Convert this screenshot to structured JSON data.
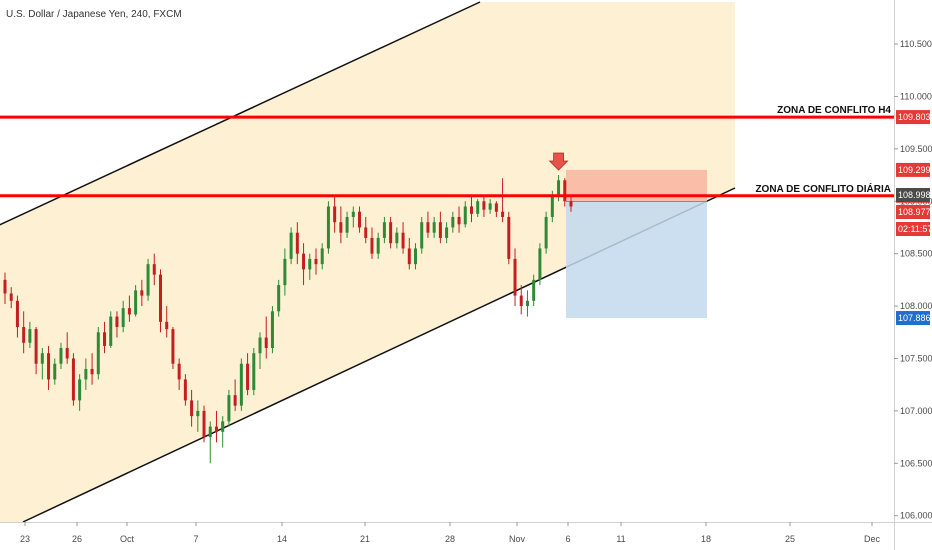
{
  "header": {
    "title": "U.S. Dollar / Japanese Yen, 240, FXCM"
  },
  "colors": {
    "channel_fill": "#fdf0d3",
    "zone_line": "#ff0000",
    "bull": "#2e8a36",
    "bear": "#c41e1e",
    "stop_zone": "#f8b4a0",
    "target_zone": "#c2d9ef",
    "badge_red": "#e53935",
    "badge_blue": "#1e6fd0",
    "badge_dark": "#4a4a4a",
    "axis_border": "#d0d0d0"
  },
  "chart_data": {
    "type": "candlestick",
    "symbol": "U.S. Dollar / Japanese Yen",
    "interval": "240",
    "source": "FXCM",
    "x_ticks": [
      "23",
      "26",
      "Oct",
      "7",
      "14",
      "21",
      "28",
      "Nov",
      "6",
      "11",
      "18",
      "25",
      "Dec"
    ],
    "y_ticks": [
      "106.000",
      "106.500",
      "107.000",
      "107.500",
      "108.000",
      "108.500",
      "109.000",
      "109.500",
      "110.000",
      "110.500"
    ],
    "ylim": [
      105.94,
      110.92
    ],
    "horizontal_levels": [
      {
        "label": "ZONA DE CONFLITO H4",
        "price": 109.803
      },
      {
        "label": "ZONA DE CONFLITO DIÁRIA",
        "price": 109.052
      }
    ],
    "price_badges": [
      {
        "text": "109.803",
        "color": "red"
      },
      {
        "text": "109.299",
        "color": "red"
      },
      {
        "text": "109.052",
        "color": "red"
      },
      {
        "text": "108.998",
        "color": "dark"
      },
      {
        "text": "108.977",
        "color": "red"
      },
      {
        "text": "02:11:57",
        "color": "red"
      },
      {
        "text": "107.886",
        "color": "blue"
      }
    ],
    "trade_setup": {
      "direction": "short",
      "stop": 109.299,
      "entry": 108.998,
      "target": 107.886
    },
    "candles": [
      [
        108.25,
        108.32,
        108.02,
        108.12
      ],
      [
        108.12,
        108.18,
        107.98,
        108.05
      ],
      [
        108.05,
        108.1,
        107.7,
        107.8
      ],
      [
        107.8,
        107.95,
        107.55,
        107.65
      ],
      [
        107.65,
        107.85,
        107.6,
        107.78
      ],
      [
        107.78,
        107.8,
        107.35,
        107.45
      ],
      [
        107.45,
        107.6,
        107.3,
        107.55
      ],
      [
        107.55,
        107.62,
        107.2,
        107.3
      ],
      [
        107.3,
        107.5,
        107.25,
        107.45
      ],
      [
        107.45,
        107.65,
        107.4,
        107.6
      ],
      [
        107.6,
        107.75,
        107.45,
        107.5
      ],
      [
        107.5,
        107.55,
        107.05,
        107.1
      ],
      [
        107.1,
        107.35,
        107.0,
        107.3
      ],
      [
        107.3,
        107.5,
        107.2,
        107.4
      ],
      [
        107.4,
        107.55,
        107.25,
        107.35
      ],
      [
        107.35,
        107.8,
        107.3,
        107.75
      ],
      [
        107.75,
        107.85,
        107.55,
        107.62
      ],
      [
        107.62,
        107.95,
        107.6,
        107.9
      ],
      [
        107.9,
        107.95,
        107.7,
        107.8
      ],
      [
        107.8,
        108.05,
        107.75,
        107.98
      ],
      [
        107.98,
        108.1,
        107.85,
        107.92
      ],
      [
        107.92,
        108.2,
        107.9,
        108.15
      ],
      [
        108.15,
        108.25,
        108.0,
        108.1
      ],
      [
        108.1,
        108.45,
        108.05,
        108.4
      ],
      [
        108.4,
        108.5,
        108.2,
        108.3
      ],
      [
        108.3,
        108.35,
        107.75,
        107.85
      ],
      [
        107.85,
        108.0,
        107.7,
        107.78
      ],
      [
        107.78,
        107.8,
        107.4,
        107.45
      ],
      [
        107.45,
        107.5,
        107.2,
        107.3
      ],
      [
        107.3,
        107.35,
        107.05,
        107.1
      ],
      [
        107.1,
        107.2,
        106.85,
        106.95
      ],
      [
        106.95,
        107.1,
        106.8,
        107.0
      ],
      [
        107.0,
        107.05,
        106.7,
        106.75
      ],
      [
        106.75,
        106.9,
        106.5,
        106.85
      ],
      [
        106.85,
        107.0,
        106.7,
        106.8
      ],
      [
        106.8,
        106.95,
        106.65,
        106.9
      ],
      [
        106.9,
        107.2,
        106.85,
        107.15
      ],
      [
        107.15,
        107.3,
        107.0,
        107.05
      ],
      [
        107.05,
        107.5,
        107.0,
        107.45
      ],
      [
        107.45,
        107.55,
        107.15,
        107.2
      ],
      [
        107.2,
        107.6,
        107.15,
        107.55
      ],
      [
        107.55,
        107.75,
        107.4,
        107.7
      ],
      [
        107.7,
        107.9,
        107.5,
        107.6
      ],
      [
        107.6,
        108.0,
        107.55,
        107.95
      ],
      [
        107.95,
        108.25,
        107.9,
        108.2
      ],
      [
        108.2,
        108.55,
        108.1,
        108.45
      ],
      [
        108.45,
        108.75,
        108.4,
        108.7
      ],
      [
        108.7,
        108.8,
        108.4,
        108.5
      ],
      [
        108.5,
        108.6,
        108.2,
        108.35
      ],
      [
        108.35,
        108.5,
        108.25,
        108.45
      ],
      [
        108.45,
        108.55,
        108.3,
        108.4
      ],
      [
        108.4,
        108.6,
        108.35,
        108.55
      ],
      [
        108.55,
        109.0,
        108.5,
        108.95
      ],
      [
        108.95,
        109.05,
        108.7,
        108.8
      ],
      [
        108.8,
        108.95,
        108.6,
        108.7
      ],
      [
        108.7,
        108.9,
        108.65,
        108.85
      ],
      [
        108.85,
        108.95,
        108.75,
        108.9
      ],
      [
        108.9,
        108.95,
        108.7,
        108.75
      ],
      [
        108.75,
        108.85,
        108.6,
        108.65
      ],
      [
        108.65,
        108.75,
        108.45,
        108.5
      ],
      [
        108.5,
        108.7,
        108.45,
        108.65
      ],
      [
        108.65,
        108.85,
        108.6,
        108.8
      ],
      [
        108.8,
        108.85,
        108.55,
        108.6
      ],
      [
        108.6,
        108.75,
        108.55,
        108.7
      ],
      [
        108.7,
        108.8,
        108.5,
        108.55
      ],
      [
        108.55,
        108.65,
        108.35,
        108.4
      ],
      [
        108.4,
        108.6,
        108.35,
        108.55
      ],
      [
        108.55,
        108.85,
        108.5,
        108.8
      ],
      [
        108.8,
        108.9,
        108.65,
        108.7
      ],
      [
        108.7,
        108.85,
        108.65,
        108.8
      ],
      [
        108.8,
        108.9,
        108.6,
        108.65
      ],
      [
        108.65,
        108.8,
        108.6,
        108.75
      ],
      [
        108.75,
        108.9,
        108.7,
        108.85
      ],
      [
        108.85,
        108.95,
        108.7,
        108.78
      ],
      [
        108.78,
        109.0,
        108.75,
        108.95
      ],
      [
        108.95,
        109.05,
        108.8,
        108.88
      ],
      [
        108.88,
        109.02,
        108.85,
        109.0
      ],
      [
        109.0,
        109.05,
        108.85,
        108.92
      ],
      [
        108.92,
        109.02,
        108.88,
        108.98
      ],
      [
        108.98,
        109.0,
        108.85,
        108.9
      ],
      [
        108.9,
        109.22,
        108.8,
        108.85
      ],
      [
        108.85,
        108.9,
        108.4,
        108.45
      ],
      [
        108.45,
        108.55,
        108.0,
        108.1
      ],
      [
        108.1,
        108.2,
        107.92,
        108.0
      ],
      [
        108.0,
        108.15,
        107.9,
        108.05
      ],
      [
        108.05,
        108.3,
        108.0,
        108.25
      ],
      [
        108.25,
        108.6,
        108.2,
        108.55
      ],
      [
        108.55,
        108.9,
        108.5,
        108.85
      ],
      [
        108.85,
        109.1,
        108.8,
        109.05
      ],
      [
        109.05,
        109.25,
        109.0,
        109.2
      ],
      [
        109.2,
        109.22,
        108.95,
        109.0
      ],
      [
        109.0,
        109.05,
        108.9,
        108.95
      ]
    ]
  }
}
